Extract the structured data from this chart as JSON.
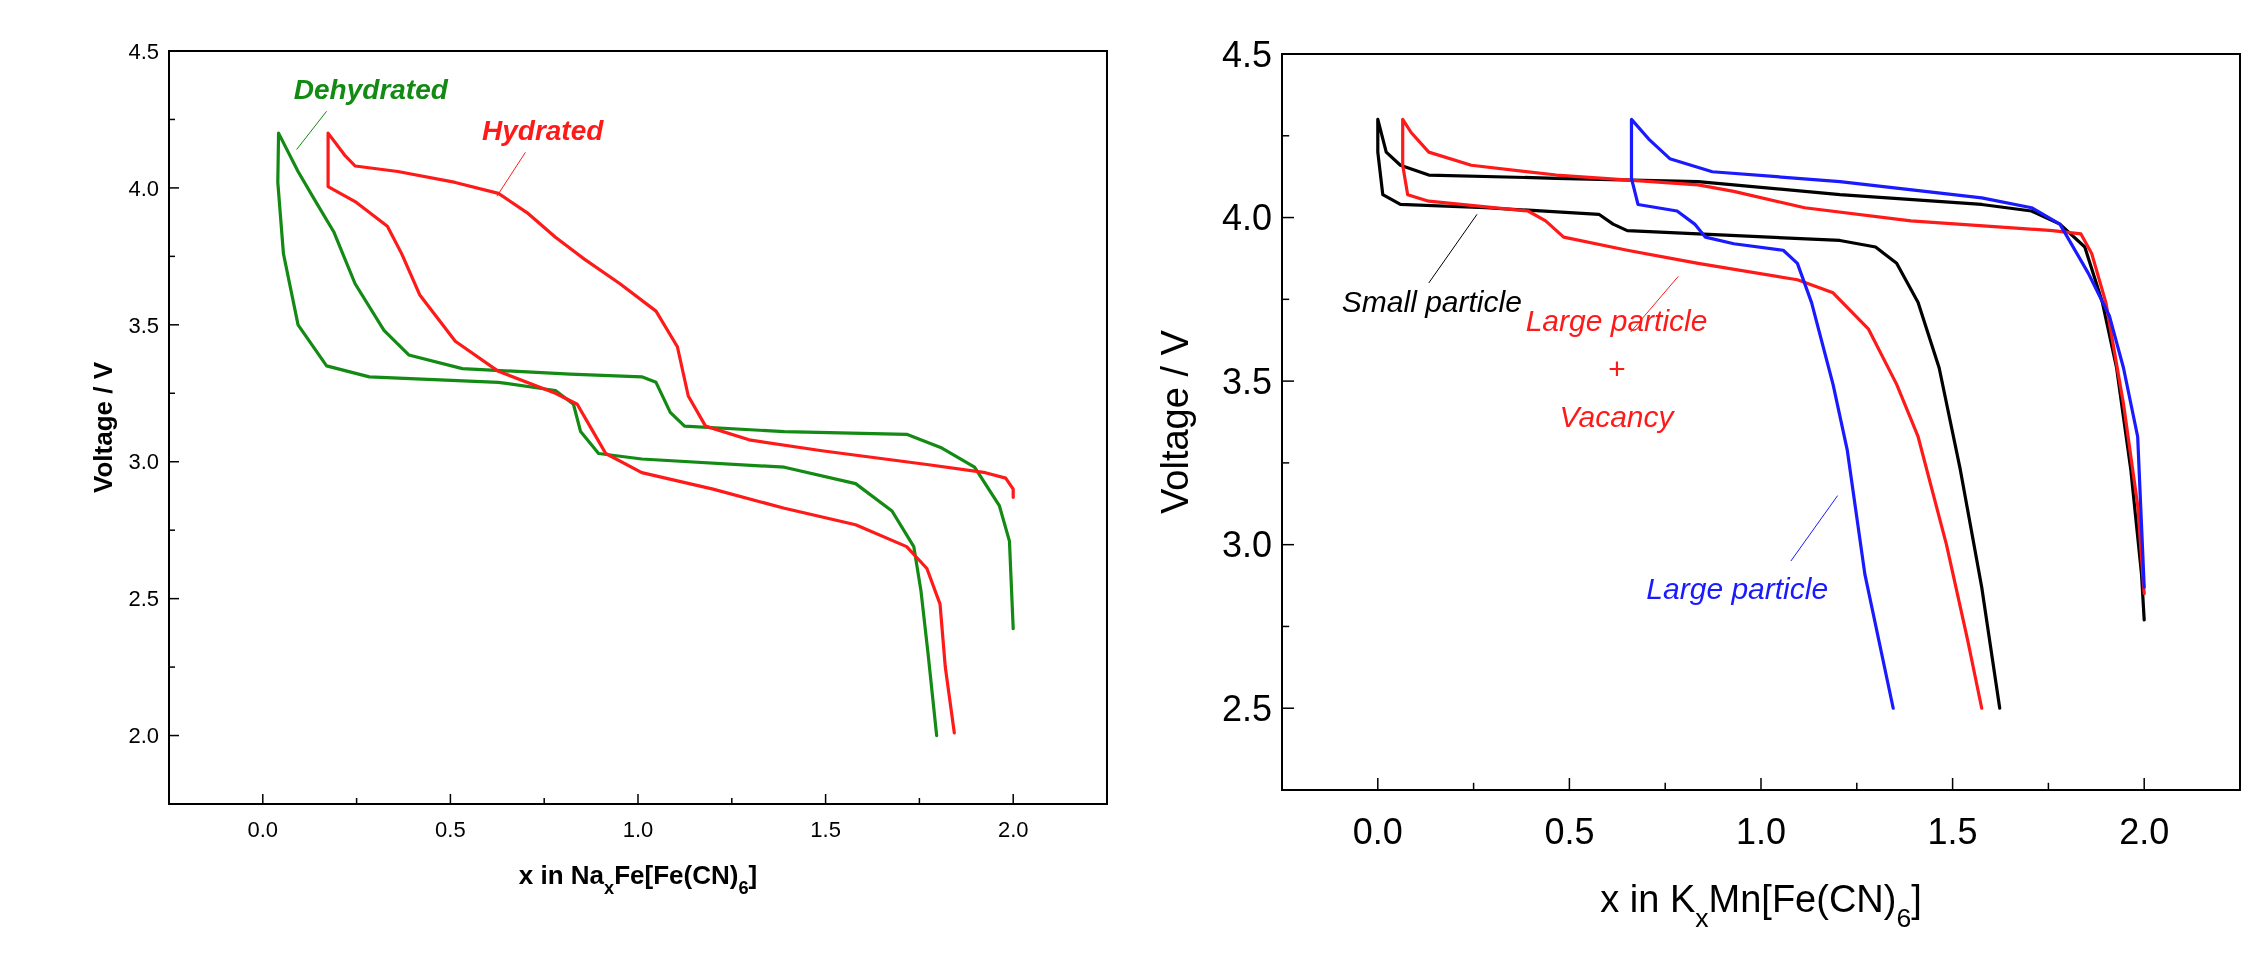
{
  "chart_data": [
    {
      "type": "line",
      "xlabel": "x in Na$_{x}$Fe[Fe(CN)$_{6}$]",
      "ylabel": "Voltage / V",
      "xlim": [
        -0.25,
        2.25
      ],
      "ylim": [
        1.75,
        4.5
      ],
      "xticks": [
        {
          "value": 0,
          "label": "0.0"
        },
        {
          "value": 0.25,
          "label": null
        },
        {
          "value": 0.5,
          "label": "0.5"
        },
        {
          "value": 0.75,
          "label": null
        },
        {
          "value": 1,
          "label": "1.0"
        },
        {
          "value": 1.25,
          "label": null
        },
        {
          "value": 1.5,
          "label": "1.5"
        },
        {
          "value": 1.75,
          "label": null
        },
        {
          "value": 2,
          "label": "2.0"
        }
      ],
      "yticks": [
        {
          "value": 2,
          "label": "2.0"
        },
        {
          "value": 2.25,
          "label": null
        },
        {
          "value": 2.5,
          "label": "2.5"
        },
        {
          "value": 2.75,
          "label": null
        },
        {
          "value": 3,
          "label": "3.0"
        },
        {
          "value": 3.25,
          "label": null
        },
        {
          "value": 3.5,
          "label": "3.5"
        },
        {
          "value": 3.75,
          "label": null
        },
        {
          "value": 4,
          "label": "4.0"
        },
        {
          "value": 4.25,
          "label": null
        },
        {
          "value": 4.5,
          "label": "4.5"
        }
      ],
      "grid": false,
      "legend": "top left",
      "marker": "none",
      "line_style": "solid",
      "series": [
        {
          "name": "Dehydrated",
          "color": "#138a13",
          "x": [
            2.0,
            1.99,
            1.963,
            1.897,
            1.81,
            1.716,
            1.39,
            1.124,
            1.086,
            1.048,
            1.01,
            0.819,
            0.532,
            0.389,
            0.323,
            0.246,
            0.189,
            0.141,
            0.094,
            0.042,
            0.04,
            0.055,
            0.094,
            0.17,
            0.284,
            0.628,
            0.78,
            0.828,
            0.847,
            0.895,
            1.01,
            1.39,
            1.58,
            1.677,
            1.735,
            1.754,
            1.773,
            1.796
          ],
          "values": [
            2.39,
            2.71,
            2.84,
            2.98,
            3.05,
            3.1,
            3.11,
            3.13,
            3.18,
            3.29,
            3.31,
            3.32,
            3.34,
            3.39,
            3.48,
            3.65,
            3.84,
            3.95,
            4.06,
            4.2,
            4.02,
            3.76,
            3.5,
            3.35,
            3.31,
            3.29,
            3.26,
            3.21,
            3.11,
            3.03,
            3.01,
            2.98,
            2.92,
            2.82,
            2.69,
            2.53,
            2.3,
            2.0
          ]
        },
        {
          "name": "Hydrated",
          "color": "#ff1a1a",
          "x": [
            2.0,
            2.0,
            1.98,
            1.926,
            1.77,
            1.49,
            1.296,
            1.18,
            1.134,
            1.105,
            1.048,
            0.952,
            0.857,
            0.78,
            0.704,
            0.628,
            0.513,
            0.36,
            0.246,
            0.218,
            0.174,
            0.174,
            0.246,
            0.332,
            0.37,
            0.418,
            0.513,
            0.628,
            0.78,
            0.838,
            0.876,
            0.914,
            1.01,
            1.2,
            1.39,
            1.58,
            1.716,
            1.77,
            1.805,
            1.819,
            1.843
          ],
          "values": [
            2.87,
            2.9,
            2.94,
            2.96,
            2.99,
            3.04,
            3.08,
            3.13,
            3.24,
            3.42,
            3.55,
            3.65,
            3.74,
            3.82,
            3.91,
            3.98,
            4.02,
            4.06,
            4.08,
            4.12,
            4.2,
            4.005,
            3.95,
            3.86,
            3.76,
            3.61,
            3.44,
            3.33,
            3.25,
            3.21,
            3.12,
            3.03,
            2.96,
            2.9,
            2.83,
            2.77,
            2.69,
            2.61,
            2.48,
            2.25,
            2.01
          ]
        }
      ]
    },
    {
      "type": "line",
      "xlabel": "x in K$_{x}$Mn[Fe(CN)$_{6}$]",
      "ylabel": "Voltage / V",
      "xlim": [
        -0.25,
        2.25
      ],
      "ylim": [
        2.25,
        4.5
      ],
      "xticks": [
        {
          "value": 0,
          "label": "0.0"
        },
        {
          "value": 0.25,
          "label": null
        },
        {
          "value": 0.5,
          "label": "0.5"
        },
        {
          "value": 0.75,
          "label": null
        },
        {
          "value": 1,
          "label": "1.0"
        },
        {
          "value": 1.25,
          "label": null
        },
        {
          "value": 1.5,
          "label": "1.5"
        },
        {
          "value": 1.75,
          "label": null
        },
        {
          "value": 2,
          "label": "2.0"
        }
      ],
      "yticks": [
        {
          "value": 2.5,
          "label": "2.5"
        },
        {
          "value": 2.75,
          "label": null
        },
        {
          "value": 3,
          "label": "3.0"
        },
        {
          "value": 3.25,
          "label": null
        },
        {
          "value": 3.5,
          "label": "3.5"
        },
        {
          "value": 3.75,
          "label": null
        },
        {
          "value": 4,
          "label": "4.0"
        },
        {
          "value": 4.25,
          "label": null
        },
        {
          "value": 4.5,
          "label": "4.5"
        }
      ],
      "grid": false,
      "legend": "left",
      "marker": "none",
      "line_style": "solid",
      "series": [
        {
          "name": "Small particle",
          "color": "#000000",
          "x": [
            2.0,
            1.993,
            1.965,
            1.928,
            1.891,
            1.845,
            1.78,
            1.706,
            1.576,
            1.206,
            0.836,
            0.466,
            0.133,
            0.059,
            0.022,
            0,
            0,
            0.013,
            0.059,
            0.281,
            0.577,
            0.614,
            0.651,
            0.836,
            1.206,
            1.299,
            1.354,
            1.41,
            1.465,
            1.52,
            1.576,
            1.623
          ],
          "values": [
            2.77,
            2.91,
            3.23,
            3.54,
            3.74,
            3.91,
            3.98,
            4.02,
            4.04,
            4.07,
            4.11,
            4.12,
            4.13,
            4.16,
            4.2,
            4.3,
            4.2,
            4.07,
            4.04,
            4.03,
            4.01,
            3.98,
            3.96,
            3.95,
            3.93,
            3.91,
            3.86,
            3.74,
            3.54,
            3.23,
            2.87,
            2.5
          ]
        },
        {
          "name": "Large particle\n+\nVacancy",
          "color": "#ff1a1a",
          "x": [
            2.0,
            1.983,
            1.946,
            1.9,
            1.863,
            1.835,
            1.761,
            1.391,
            1.114,
            0.929,
            0.836,
            0.466,
            0.244,
            0.133,
            0.087,
            0.065,
            0.065,
            0.078,
            0.133,
            0.392,
            0.438,
            0.485,
            0.651,
            0.836,
            1.095,
            1.188,
            1.28,
            1.354,
            1.41,
            1.484,
            1.539,
            1.576
          ],
          "values": [
            2.85,
            3.12,
            3.43,
            3.74,
            3.89,
            3.95,
            3.96,
            3.99,
            4.03,
            4.08,
            4.1,
            4.13,
            4.16,
            4.2,
            4.26,
            4.3,
            4.16,
            4.07,
            4.05,
            4.02,
            3.99,
            3.94,
            3.9,
            3.86,
            3.81,
            3.77,
            3.66,
            3.49,
            3.33,
            3.0,
            2.71,
            2.5
          ]
        },
        {
          "name": "Large particle",
          "color": "#1a1aff",
          "x": [
            2.0,
            1.983,
            1.946,
            1.909,
            1.854,
            1.78,
            1.706,
            1.576,
            1.206,
            0.873,
            0.762,
            0.707,
            0.662,
            0.662,
            0.679,
            0.781,
            0.827,
            0.855,
            0.929,
            1.058,
            1.095,
            1.132,
            1.188,
            1.225,
            1.271,
            1.345
          ],
          "values": [
            2.87,
            3.33,
            3.54,
            3.7,
            3.83,
            3.98,
            4.03,
            4.06,
            4.11,
            4.14,
            4.18,
            4.24,
            4.3,
            4.12,
            4.04,
            4.02,
            3.98,
            3.94,
            3.92,
            3.9,
            3.86,
            3.74,
            3.49,
            3.29,
            2.91,
            2.5
          ]
        }
      ]
    }
  ]
}
